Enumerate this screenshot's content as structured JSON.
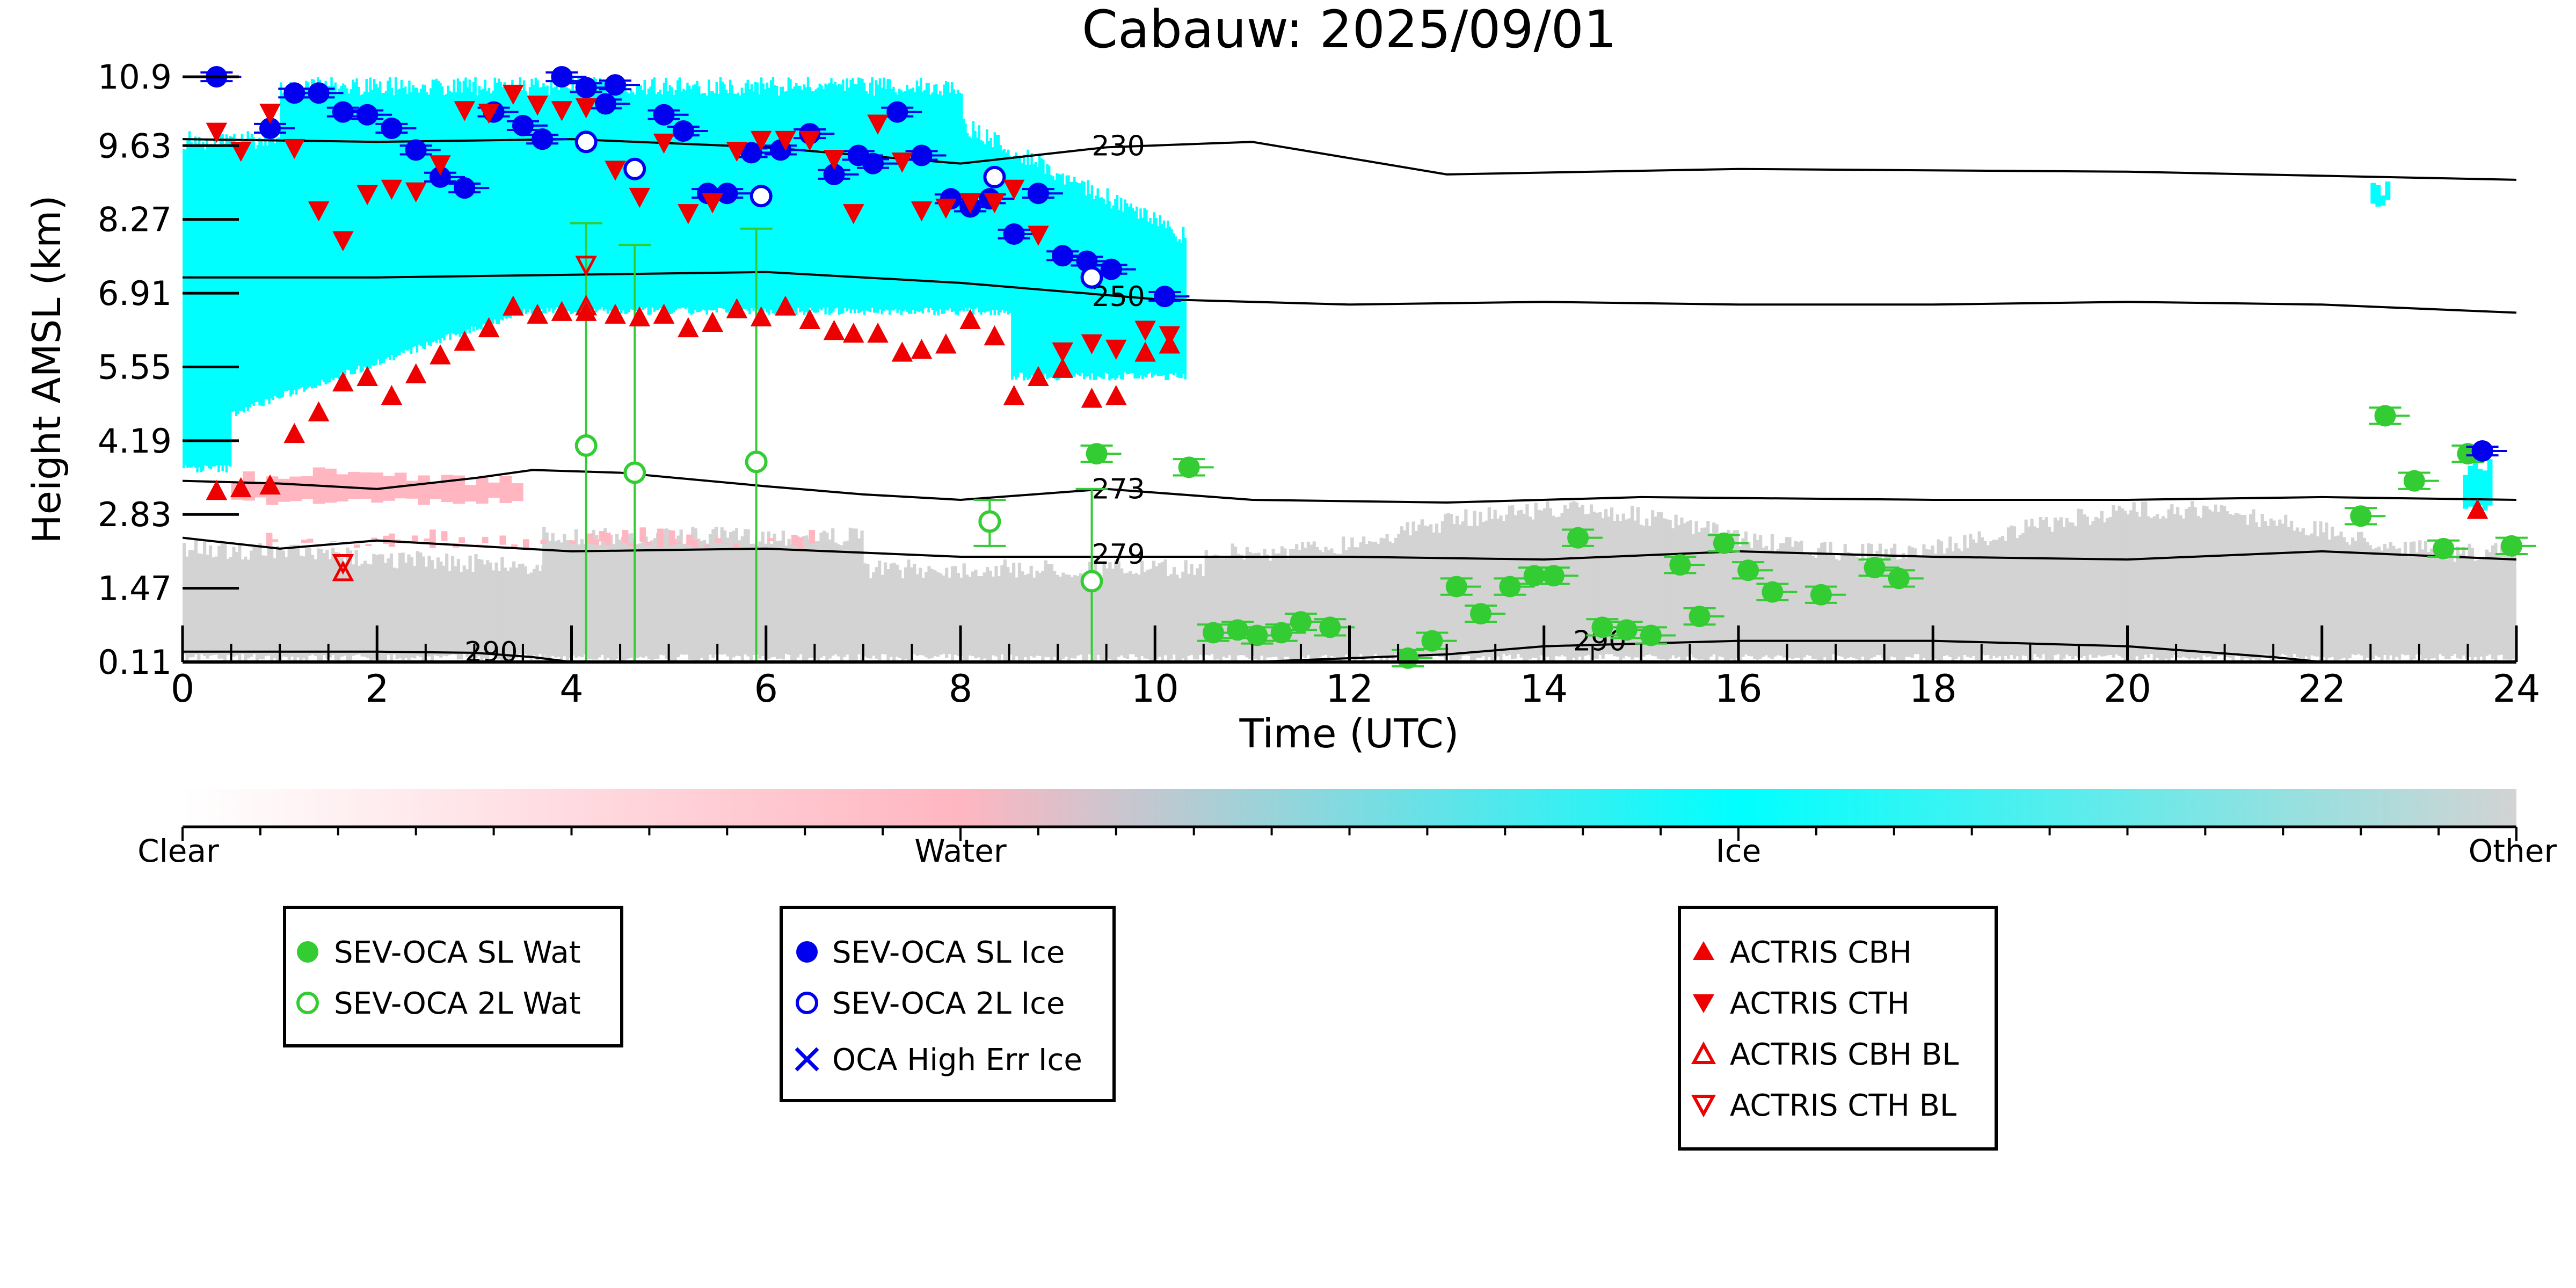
{
  "chart_data": {
    "type": "scatter",
    "title": "Cabauw: 2025/09/01",
    "xlabel": "Time (UTC)",
    "ylabel": "Height AMSL (km)",
    "xlim": [
      0,
      24
    ],
    "ylim": [
      0.11,
      10.9
    ],
    "xticks": [
      "0",
      "2",
      "4",
      "6",
      "8",
      "10",
      "12",
      "14",
      "16",
      "18",
      "20",
      "22",
      "24"
    ],
    "yticks": [
      "0.11",
      "1.47",
      "2.83",
      "4.19",
      "5.55",
      "6.91",
      "8.27",
      "9.63",
      "10.9"
    ],
    "colorbar": {
      "labels": [
        "Clear",
        "Water",
        "Ice",
        "Other"
      ],
      "colors": [
        "#ffffff",
        "#ffb6c1",
        "#00ffff",
        "#d3d3d3"
      ]
    },
    "isotherms": [
      {
        "label": "230",
        "x": [
          0,
          2,
          4,
          6,
          8,
          9.5,
          11,
          13,
          16,
          20,
          24
        ],
        "y": [
          9.75,
          9.7,
          9.75,
          9.6,
          9.3,
          9.6,
          9.7,
          9.1,
          9.2,
          9.15,
          9.0
        ]
      },
      {
        "label": "250",
        "x": [
          0,
          2,
          4,
          6,
          8,
          10,
          12,
          14,
          16,
          18,
          20,
          22,
          24
        ],
        "y": [
          7.2,
          7.2,
          7.25,
          7.3,
          7.1,
          6.8,
          6.7,
          6.75,
          6.7,
          6.7,
          6.75,
          6.7,
          6.55
        ]
      },
      {
        "label": "273",
        "x": [
          0,
          1,
          2,
          3,
          3.6,
          4.5,
          6,
          7,
          8,
          9.5,
          11,
          13,
          15,
          18,
          20,
          22,
          24
        ],
        "y": [
          3.45,
          3.4,
          3.3,
          3.5,
          3.65,
          3.6,
          3.35,
          3.2,
          3.1,
          3.3,
          3.1,
          3.05,
          3.15,
          3.1,
          3.1,
          3.15,
          3.1
        ]
      },
      {
        "label": "279",
        "x": [
          0,
          1,
          2,
          3,
          4,
          6,
          8,
          10,
          12,
          14,
          16,
          18,
          20,
          22,
          24
        ],
        "y": [
          2.4,
          2.2,
          2.35,
          2.25,
          2.15,
          2.2,
          2.05,
          2.05,
          2.05,
          2.0,
          2.15,
          2.05,
          2.0,
          2.15,
          2.0
        ]
      },
      {
        "label": "290",
        "x": [
          0,
          2,
          3,
          3.6,
          4
        ],
        "y": [
          0.3,
          0.3,
          0.28,
          0.2,
          0.11
        ]
      },
      {
        "label": "290",
        "x": [
          11,
          13,
          14,
          16,
          18,
          20,
          21.5,
          22
        ],
        "y": [
          0.11,
          0.25,
          0.4,
          0.5,
          0.5,
          0.4,
          0.2,
          0.11
        ]
      }
    ],
    "series": [
      {
        "name": "SEV-OCA SL Wat",
        "color": "#33cc33",
        "marker": "circle-filled",
        "err": 0.15,
        "x": [
          9.4,
          10.35,
          10.6,
          10.85,
          11.05,
          11.3,
          11.5,
          11.8,
          12.6,
          12.85,
          13.1,
          13.35,
          13.65,
          13.9,
          14.1,
          14.35,
          14.6,
          14.85,
          15.1,
          15.4,
          15.6,
          15.85,
          16.1,
          16.35,
          16.85,
          17.4,
          17.65,
          22.4,
          22.65,
          22.95,
          23.25,
          23.5,
          23.95
        ],
        "y": [
          3.95,
          3.7,
          0.65,
          0.7,
          0.6,
          0.65,
          0.85,
          0.75,
          0.18,
          0.5,
          1.5,
          1.0,
          1.5,
          1.7,
          1.7,
          2.4,
          0.75,
          0.7,
          0.6,
          1.9,
          0.95,
          2.3,
          1.8,
          1.4,
          1.35,
          1.85,
          1.65,
          2.8,
          4.65,
          3.45,
          2.2,
          3.95,
          2.25
        ]
      },
      {
        "name": "SEV-OCA 2L Wat",
        "color": "#33cc33",
        "marker": "circle-open",
        "x": [
          4.15,
          4.65,
          5.9,
          8.3,
          9.35
        ],
        "y": [
          4.1,
          3.6,
          3.8,
          2.7,
          1.6
        ],
        "ylo": [
          0.11,
          0.11,
          0.11,
          2.25,
          0.11
        ],
        "yhi": [
          8.2,
          7.8,
          8.1,
          3.1,
          3.3
        ]
      },
      {
        "name": "SEV-OCA SL Ice",
        "color": "#0000ee",
        "marker": "circle-filled",
        "err": 0.08,
        "x": [
          0.35,
          0.9,
          1.15,
          1.4,
          1.65,
          1.9,
          2.15,
          2.4,
          2.65,
          2.9,
          3.2,
          3.5,
          3.7,
          3.9,
          4.15,
          4.35,
          4.45,
          4.95,
          5.15,
          5.4,
          5.6,
          5.85,
          6.15,
          6.45,
          6.7,
          6.95,
          7.1,
          7.35,
          7.6,
          7.9,
          8.1,
          8.3,
          8.55,
          8.8,
          9.05,
          9.3,
          9.55,
          10.1,
          23.65
        ],
        "y": [
          10.9,
          9.95,
          10.6,
          10.6,
          10.25,
          10.2,
          9.95,
          9.55,
          9.05,
          8.85,
          10.25,
          10.0,
          9.75,
          10.9,
          10.7,
          10.4,
          10.75,
          10.2,
          9.9,
          8.75,
          8.75,
          9.5,
          9.55,
          9.85,
          9.1,
          9.45,
          9.3,
          10.25,
          9.45,
          8.65,
          8.5,
          8.65,
          8.0,
          8.75,
          7.6,
          7.5,
          7.35,
          6.85,
          4.0
        ]
      },
      {
        "name": "SEV-OCA 2L Ice",
        "color": "#0000ee",
        "marker": "circle-open",
        "x": [
          4.15,
          4.65,
          5.95,
          8.35,
          9.35
        ],
        "y": [
          9.7,
          9.2,
          8.7,
          9.05,
          7.2
        ]
      },
      {
        "name": "OCA High Err Ice",
        "color": "#0000ee",
        "marker": "x",
        "x": [],
        "y": []
      },
      {
        "name": "ACTRIS CBH",
        "color": "#ee0000",
        "marker": "triangle-up",
        "x": [
          0.35,
          0.6,
          0.9,
          1.15,
          1.4,
          1.65,
          1.9,
          2.15,
          2.4,
          2.65,
          2.9,
          3.15,
          3.4,
          3.65,
          3.9,
          4.15,
          4.45,
          4.7,
          4.95,
          5.2,
          5.45,
          5.7,
          5.95,
          6.2,
          6.45,
          6.7,
          6.9,
          7.15,
          7.4,
          7.6,
          7.85,
          8.1,
          8.35,
          8.55,
          8.8,
          9.05,
          9.35,
          9.6,
          9.9,
          10.15,
          23.6
        ],
        "y": [
          3.25,
          3.3,
          3.35,
          4.3,
          4.7,
          5.25,
          5.35,
          5.0,
          5.4,
          5.75,
          6.0,
          6.25,
          6.65,
          6.5,
          6.55,
          6.55,
          6.5,
          6.45,
          6.5,
          6.25,
          6.35,
          6.6,
          6.45,
          6.65,
          6.4,
          6.2,
          6.15,
          6.15,
          5.8,
          5.85,
          5.95,
          6.4,
          6.1,
          5.0,
          5.35,
          5.5,
          4.95,
          5.0,
          5.8,
          5.95,
          2.9
        ]
      },
      {
        "name": "ACTRIS CTH",
        "color": "#ee0000",
        "marker": "triangle-down",
        "x": [
          0.35,
          0.6,
          0.9,
          1.15,
          1.4,
          1.65,
          1.9,
          2.15,
          2.4,
          2.65,
          2.9,
          3.15,
          3.4,
          3.65,
          3.9,
          4.15,
          4.45,
          4.7,
          4.95,
          5.2,
          5.45,
          5.7,
          5.95,
          6.2,
          6.45,
          6.7,
          6.9,
          7.15,
          7.4,
          7.6,
          7.85,
          8.1,
          8.35,
          8.55,
          8.8,
          9.05,
          9.35,
          9.6,
          9.9,
          10.15
        ],
        "y": [
          9.9,
          9.55,
          10.25,
          9.6,
          8.45,
          7.9,
          8.75,
          8.85,
          8.8,
          9.3,
          10.3,
          10.25,
          10.6,
          10.4,
          10.3,
          10.35,
          9.2,
          8.7,
          9.7,
          8.4,
          8.6,
          9.55,
          9.75,
          9.75,
          9.75,
          9.4,
          8.4,
          10.05,
          9.35,
          8.45,
          8.5,
          8.6,
          8.6,
          8.85,
          8.0,
          5.85,
          6.0,
          5.9,
          6.25,
          6.15
        ]
      },
      {
        "name": "ACTRIS CBH BL",
        "color": "#ee0000",
        "marker": "triangle-up-open",
        "x": [
          1.65,
          4.15
        ],
        "y": [
          1.75,
          6.65
        ]
      },
      {
        "name": "ACTRIS CTH BL",
        "color": "#ee0000",
        "marker": "triangle-down-open",
        "x": [
          1.65,
          4.15
        ],
        "y": [
          1.95,
          7.45
        ]
      }
    ],
    "legend": {
      "group1": [
        "SEV-OCA SL Wat",
        "SEV-OCA 2L Wat"
      ],
      "group2": [
        "SEV-OCA SL Ice",
        "SEV-OCA 2L Ice",
        "OCA High Err Ice"
      ],
      "group3": [
        "ACTRIS CBH",
        "ACTRIS CTH",
        "ACTRIS CBH BL",
        "ACTRIS CTH BL"
      ]
    }
  }
}
